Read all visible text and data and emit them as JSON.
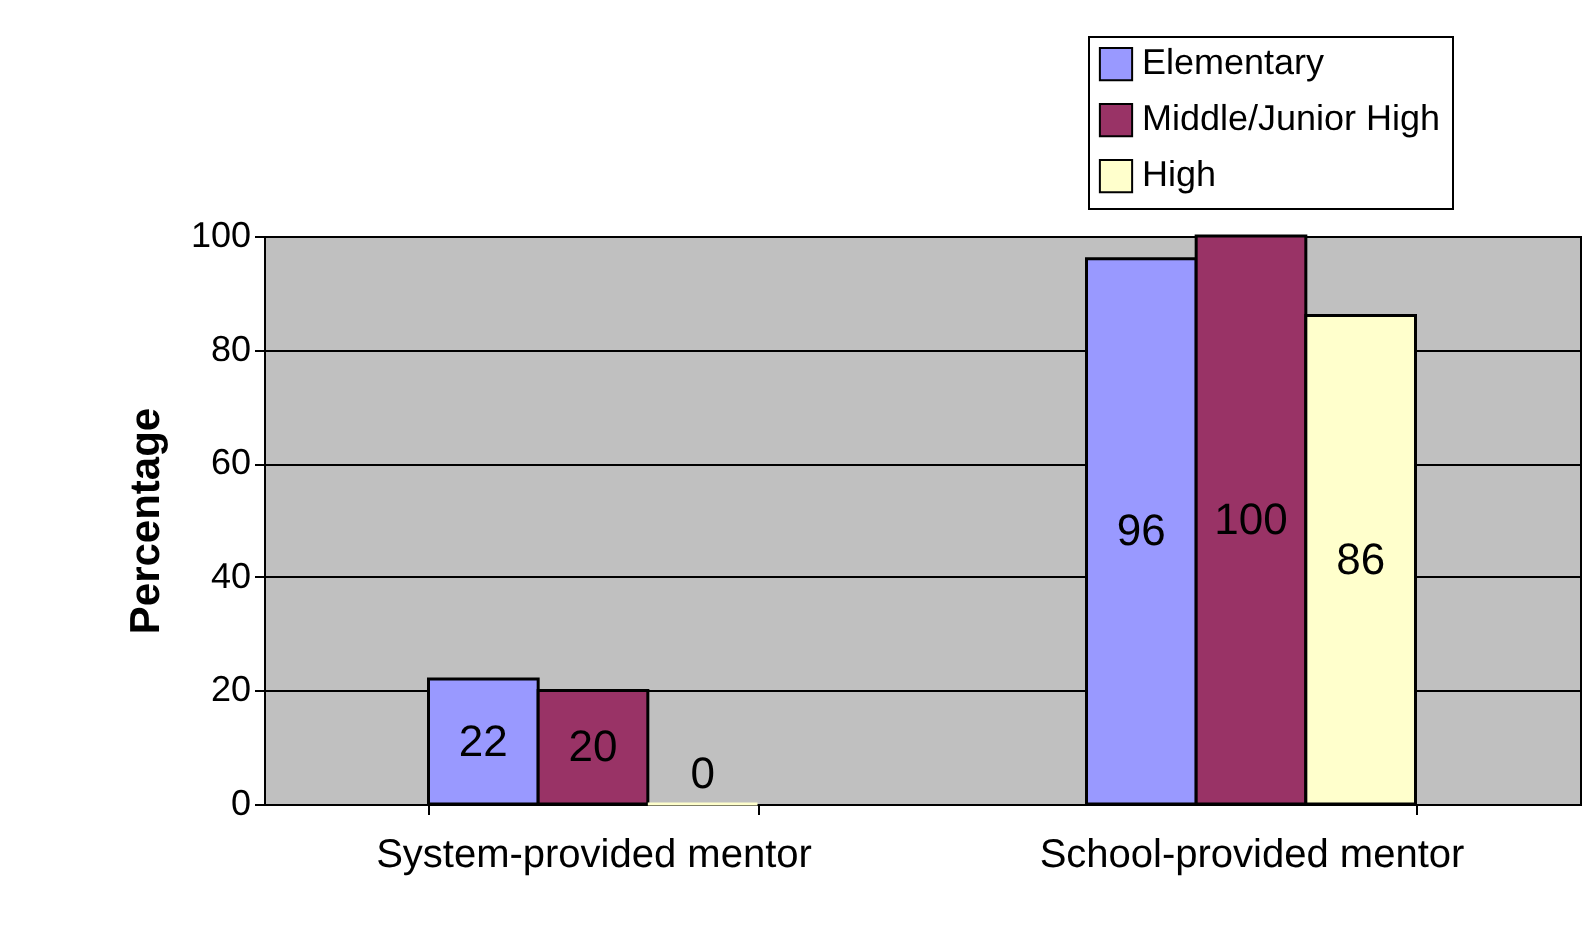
{
  "chart_data": {
    "type": "bar",
    "ylabel": "Percentage",
    "categories": [
      "System-provided mentor",
      "School-provided mentor"
    ],
    "series": [
      {
        "name": "Elementary",
        "color": "#9999ff",
        "values": [
          22,
          96
        ]
      },
      {
        "name": "Middle/Junior High",
        "color": "#993366",
        "values": [
          20,
          100
        ]
      },
      {
        "name": "High",
        "color": "#ffffcc",
        "values": [
          0,
          86
        ]
      }
    ],
    "ylim": [
      0,
      100
    ],
    "yticks": [
      0,
      20,
      40,
      60,
      80,
      100
    ],
    "grid": "y",
    "legend": "top right",
    "data_labels": true
  }
}
